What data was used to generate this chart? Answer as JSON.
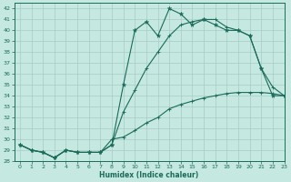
{
  "xlabel": "Humidex (Indice chaleur)",
  "bg_color": "#c5e8e0",
  "line_color": "#1a6b5a",
  "grid_color": "#a8ccc5",
  "xlim": [
    -0.5,
    23
  ],
  "ylim": [
    28,
    42.5
  ],
  "yticks": [
    28,
    29,
    30,
    31,
    32,
    33,
    34,
    35,
    36,
    37,
    38,
    39,
    40,
    41,
    42
  ],
  "xticks": [
    0,
    1,
    2,
    3,
    4,
    5,
    6,
    7,
    8,
    9,
    10,
    11,
    12,
    13,
    14,
    15,
    16,
    17,
    18,
    19,
    20,
    21,
    22,
    23
  ],
  "series1_x": [
    0,
    1,
    2,
    3,
    4,
    5,
    6,
    7,
    8,
    9,
    10,
    11,
    12,
    13,
    14,
    15,
    16,
    17,
    18,
    19,
    20,
    21,
    22,
    23
  ],
  "series1_y": [
    29.5,
    29.0,
    28.8,
    28.3,
    29.0,
    28.8,
    28.8,
    28.8,
    29.5,
    35.0,
    40.0,
    40.8,
    39.5,
    42.0,
    41.5,
    40.5,
    41.0,
    40.5,
    40.0,
    40.0,
    39.5,
    36.5,
    34.0,
    34.0
  ],
  "series2_x": [
    0,
    1,
    2,
    3,
    4,
    5,
    6,
    7,
    8,
    9,
    10,
    11,
    12,
    13,
    14,
    15,
    16,
    17,
    18,
    19,
    20,
    21,
    22,
    23
  ],
  "series2_y": [
    29.5,
    29.0,
    28.8,
    28.3,
    29.0,
    28.8,
    28.8,
    28.8,
    30.0,
    30.2,
    30.8,
    31.5,
    32.0,
    32.8,
    33.2,
    33.5,
    33.8,
    34.0,
    34.2,
    34.3,
    34.3,
    34.3,
    34.2,
    34.0
  ],
  "series3_x": [
    0,
    1,
    2,
    3,
    4,
    5,
    6,
    7,
    8,
    9,
    10,
    11,
    12,
    13,
    14,
    15,
    16,
    17,
    18,
    19,
    20,
    21,
    22,
    23
  ],
  "series3_y": [
    29.5,
    29.0,
    28.8,
    28.3,
    29.0,
    28.8,
    28.8,
    28.8,
    29.5,
    32.5,
    34.5,
    36.5,
    38.0,
    39.5,
    40.5,
    40.8,
    41.0,
    41.0,
    40.3,
    40.0,
    39.5,
    36.5,
    34.8,
    34.0
  ]
}
